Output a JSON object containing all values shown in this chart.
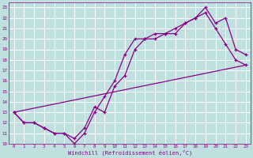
{
  "xlabel": "Windchill (Refroidissement éolien,°C)",
  "bg_color": "#c0e0e0",
  "line_color": "#880088",
  "grid_color": "#ffffff",
  "xlim": [
    -0.5,
    23.5
  ],
  "ylim": [
    10,
    23.5
  ],
  "yticks": [
    10,
    11,
    12,
    13,
    14,
    15,
    16,
    17,
    18,
    19,
    20,
    21,
    22,
    23
  ],
  "xticks": [
    0,
    1,
    2,
    3,
    4,
    5,
    6,
    7,
    8,
    9,
    10,
    11,
    12,
    13,
    14,
    15,
    16,
    17,
    18,
    19,
    20,
    21,
    22,
    23
  ],
  "line1_x": [
    0,
    1,
    2,
    3,
    4,
    5,
    6,
    7,
    8,
    9,
    10,
    11,
    12,
    13,
    14,
    15,
    16,
    17,
    18,
    19,
    20,
    21,
    22,
    23
  ],
  "line1_y": [
    13,
    12,
    12,
    11.5,
    11,
    11,
    10,
    11,
    13,
    14.5,
    16,
    18.5,
    20,
    20,
    20.5,
    20.5,
    21,
    21.5,
    22,
    22.5,
    21,
    19.5,
    18,
    17.5
  ],
  "line2_x": [
    0,
    1,
    2,
    3,
    4,
    5,
    6,
    7,
    8,
    9,
    10,
    11,
    12,
    13,
    14,
    15,
    16,
    17,
    18,
    19,
    20,
    21,
    22,
    23
  ],
  "line2_y": [
    13,
    12,
    12,
    11.5,
    11,
    11,
    10.5,
    11.5,
    13.5,
    13,
    15.5,
    16.5,
    19,
    20,
    20,
    20.5,
    20.5,
    21.5,
    22,
    23,
    21.5,
    22,
    19,
    18.5
  ],
  "line3_x": [
    0,
    23
  ],
  "line3_y": [
    13,
    17.5
  ]
}
